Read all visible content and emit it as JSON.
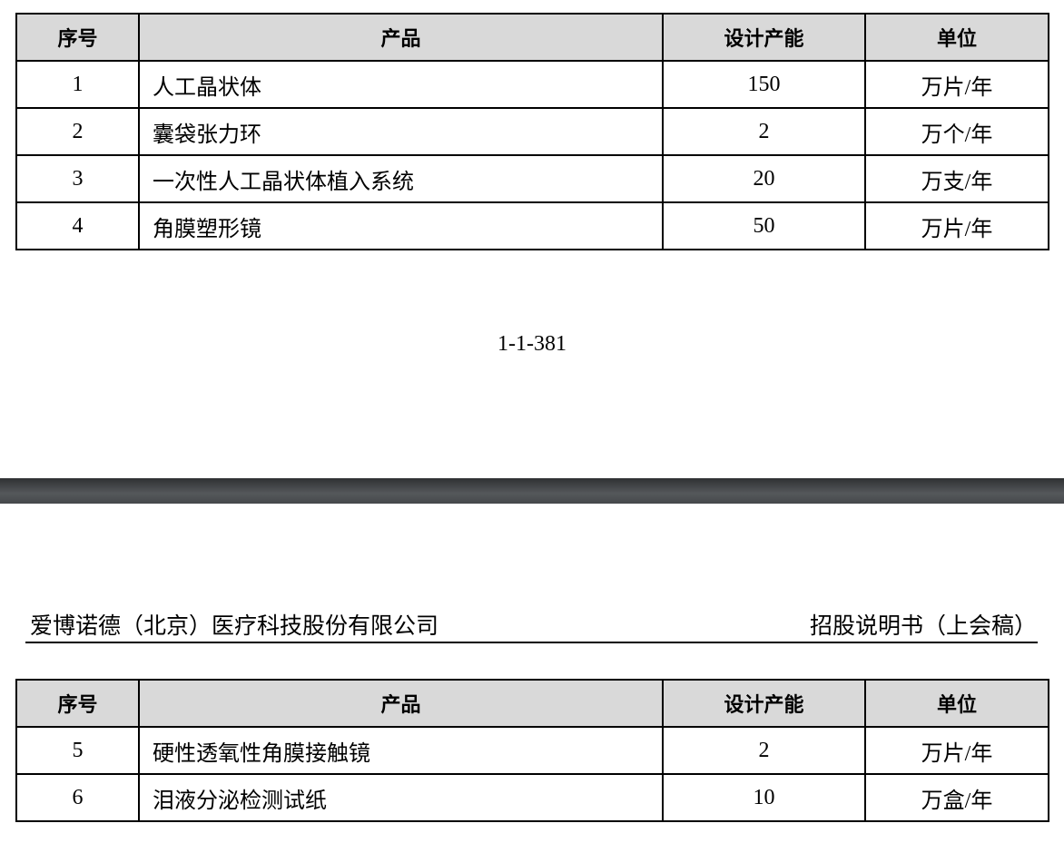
{
  "columns": [
    "序号",
    "产品",
    "设计产能",
    "单位"
  ],
  "table1": [
    {
      "no": "1",
      "product": "人工晶状体",
      "capacity": "150",
      "unit": "万片/年"
    },
    {
      "no": "2",
      "product": "囊袋张力环",
      "capacity": "2",
      "unit": "万个/年"
    },
    {
      "no": "3",
      "product": "一次性人工晶状体植入系统",
      "capacity": "20",
      "unit": "万支/年"
    },
    {
      "no": "4",
      "product": "角膜塑形镜",
      "capacity": "50",
      "unit": "万片/年"
    }
  ],
  "page_number": "1-1-381",
  "header": {
    "company": "爱博诺德（北京）医疗科技股份有限公司",
    "doc_title": "招股说明书（上会稿）"
  },
  "table2": [
    {
      "no": "5",
      "product": "硬性透氧性角膜接触镜",
      "capacity": "2",
      "unit": "万片/年"
    },
    {
      "no": "6",
      "product": "泪液分泌检测试纸",
      "capacity": "10",
      "unit": "万盒/年"
    }
  ]
}
